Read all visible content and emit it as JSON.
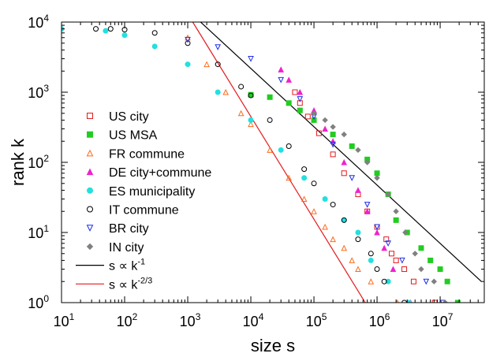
{
  "chart_data": {
    "type": "scatter",
    "title": "",
    "xlabel": "size s",
    "ylabel": "rank k",
    "xscale": "log",
    "yscale": "log",
    "xlim": [
      10,
      50000000
    ],
    "ylim": [
      1,
      10000
    ],
    "x_ticks": [
      {
        "value": 10,
        "base": "10",
        "exp": "1"
      },
      {
        "value": 100,
        "base": "10",
        "exp": "2"
      },
      {
        "value": 1000,
        "base": "10",
        "exp": "3"
      },
      {
        "value": 10000,
        "base": "10",
        "exp": "4"
      },
      {
        "value": 100000,
        "base": "10",
        "exp": "5"
      },
      {
        "value": 1000000,
        "base": "10",
        "exp": "6"
      },
      {
        "value": 10000000,
        "base": "10",
        "exp": "7"
      }
    ],
    "y_ticks": [
      {
        "value": 1,
        "base": "10",
        "exp": "0"
      },
      {
        "value": 10,
        "base": "10",
        "exp": "1"
      },
      {
        "value": 100,
        "base": "10",
        "exp": "2"
      },
      {
        "value": 1000,
        "base": "10",
        "exp": "3"
      },
      {
        "value": 10000,
        "base": "10",
        "exp": "4"
      }
    ],
    "grid": false,
    "legend_position": "left",
    "series": [
      {
        "name": "US city",
        "marker": "square-open",
        "color": "#e41a1c",
        "points": [
          [
            50000,
            1000
          ],
          [
            60000,
            700
          ],
          [
            80000,
            450
          ],
          [
            120000,
            260
          ],
          [
            200000,
            130
          ],
          [
            300000,
            70
          ],
          [
            500000,
            35
          ],
          [
            700000,
            20
          ],
          [
            1000000,
            12
          ],
          [
            1400000,
            8
          ],
          [
            1700000,
            5
          ],
          [
            2000000,
            4
          ],
          [
            2700000,
            3
          ],
          [
            3800000,
            2
          ],
          [
            8200000,
            1
          ]
        ]
      },
      {
        "name": "US MSA",
        "marker": "square-filled",
        "color": "#22cc22",
        "points": [
          [
            10000,
            920
          ],
          [
            20000,
            850
          ],
          [
            40000,
            700
          ],
          [
            60000,
            550
          ],
          [
            100000,
            400
          ],
          [
            200000,
            250
          ],
          [
            400000,
            170
          ],
          [
            700000,
            110
          ],
          [
            1000000,
            70
          ],
          [
            1500000,
            35
          ],
          [
            2000000,
            15
          ],
          [
            3000000,
            10
          ],
          [
            5000000,
            6
          ],
          [
            7000000,
            4
          ],
          [
            10000000,
            3
          ],
          [
            13000000,
            2
          ],
          [
            19000000,
            1
          ]
        ]
      },
      {
        "name": "FR commune",
        "marker": "triangle-open",
        "color": "#ff6a1a",
        "points": [
          [
            1000,
            6000
          ],
          [
            2000,
            2500
          ],
          [
            4000,
            1000
          ],
          [
            7000,
            500
          ],
          [
            10000,
            350
          ],
          [
            20000,
            150
          ],
          [
            40000,
            60
          ],
          [
            70000,
            30
          ],
          [
            100000,
            20
          ],
          [
            150000,
            12
          ],
          [
            200000,
            8
          ],
          [
            300000,
            6
          ],
          [
            400000,
            4
          ],
          [
            500000,
            3
          ],
          [
            800000,
            2
          ],
          [
            2100000,
            1
          ]
        ]
      },
      {
        "name": "DE city+commune",
        "marker": "triangle-filled",
        "color": "#ee22cc",
        "points": [
          [
            30000,
            2100
          ],
          [
            40000,
            1500
          ],
          [
            60000,
            1000
          ],
          [
            100000,
            550
          ],
          [
            150000,
            300
          ],
          [
            200000,
            200
          ],
          [
            300000,
            100
          ],
          [
            500000,
            40
          ],
          [
            700000,
            20
          ],
          [
            1000000,
            10
          ],
          [
            1300000,
            6
          ],
          [
            1800000,
            3
          ],
          [
            3400000,
            1
          ]
        ]
      },
      {
        "name": "ES municipality",
        "marker": "circle-filled",
        "color": "#22e0e0",
        "points": [
          [
            10,
            8000
          ],
          [
            50,
            7500
          ],
          [
            100,
            6500
          ],
          [
            300,
            4500
          ],
          [
            1000,
            2500
          ],
          [
            3000,
            1000
          ],
          [
            10000,
            400
          ],
          [
            30000,
            150
          ],
          [
            70000,
            60
          ],
          [
            150000,
            30
          ],
          [
            300000,
            15
          ],
          [
            500000,
            10
          ],
          [
            800000,
            4
          ],
          [
            1500000,
            2
          ],
          [
            3200000,
            1
          ]
        ]
      },
      {
        "name": "IT commune",
        "marker": "circle-open",
        "color": "#000000",
        "points": [
          [
            35,
            8000
          ],
          [
            60,
            8000
          ],
          [
            100,
            7800
          ],
          [
            300,
            7000
          ],
          [
            1000,
            5000
          ],
          [
            3000,
            2500
          ],
          [
            7000,
            1200
          ],
          [
            10000,
            900
          ],
          [
            20000,
            400
          ],
          [
            40000,
            170
          ],
          [
            70000,
            80
          ],
          [
            100000,
            50
          ],
          [
            200000,
            25
          ],
          [
            300000,
            15
          ],
          [
            500000,
            8
          ],
          [
            800000,
            5
          ],
          [
            1000000,
            3
          ],
          [
            1300000,
            2
          ],
          [
            2700000,
            1
          ]
        ]
      },
      {
        "name": "BR city",
        "marker": "triangle-down-open",
        "color": "#1a2ee8",
        "points": [
          [
            1000,
            5600
          ],
          [
            3000,
            4400
          ],
          [
            10000,
            3000
          ],
          [
            30000,
            1500
          ],
          [
            60000,
            800
          ],
          [
            100000,
            450
          ],
          [
            200000,
            180
          ],
          [
            400000,
            60
          ],
          [
            700000,
            25
          ],
          [
            1000000,
            12
          ],
          [
            1500000,
            7
          ],
          [
            2500000,
            4
          ],
          [
            6000000,
            2
          ],
          [
            11000000,
            1
          ]
        ]
      },
      {
        "name": "IN city",
        "marker": "diamond-filled",
        "color": "#808080",
        "points": [
          [
            100000,
            500
          ],
          [
            150000,
            400
          ],
          [
            200000,
            320
          ],
          [
            300000,
            250
          ],
          [
            500000,
            150
          ],
          [
            700000,
            100
          ],
          [
            1000000,
            60
          ],
          [
            1500000,
            35
          ],
          [
            2000000,
            20
          ],
          [
            2800000,
            10
          ],
          [
            4000000,
            5
          ],
          [
            5000000,
            3
          ],
          [
            8000000,
            2
          ],
          [
            12000000,
            1
          ]
        ]
      }
    ],
    "reference_lines": [
      {
        "name": "s ∝ k",
        "exp": "-1",
        "color": "#000000",
        "points": [
          [
            1600,
            10000
          ],
          [
            45000000,
            2
          ]
        ]
      },
      {
        "name": "s ∝ k",
        "exp": "-2/3",
        "color": "#e41a1c",
        "points": [
          [
            1200,
            10000
          ],
          [
            650000,
            1
          ]
        ]
      }
    ]
  }
}
